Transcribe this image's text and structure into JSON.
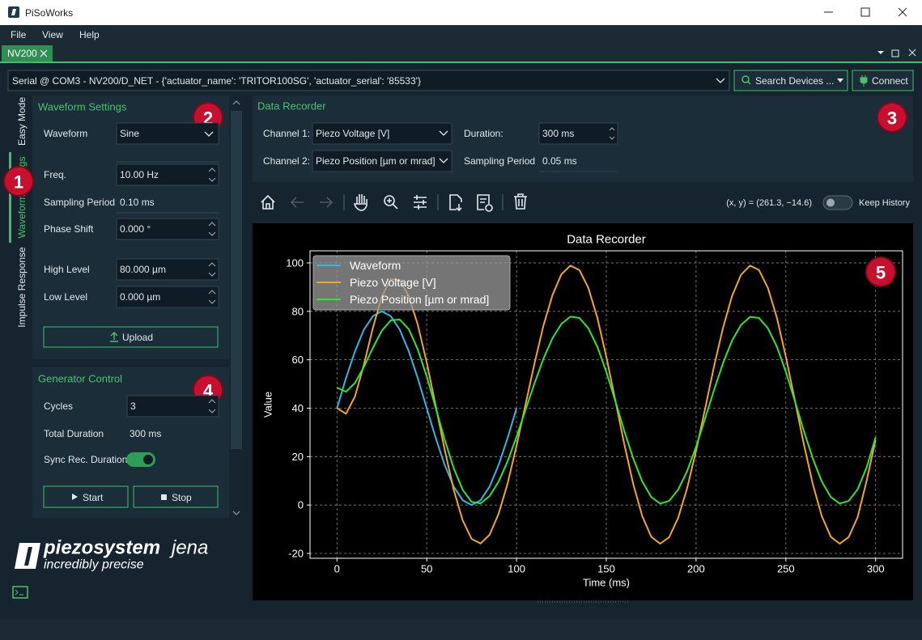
{
  "window": {
    "title": "PiSoWorks"
  },
  "menu": [
    "File",
    "View",
    "Help"
  ],
  "tab": "NV200",
  "device": {
    "selection": "Serial @ COM3 - NV200/D_NET - {'actuator_name': 'TRITOR100SG', 'actuator_serial': '85533'}",
    "search_button": "Search Devices ...",
    "connect_button": "Connect"
  },
  "side_tabs": [
    "Easy Mode",
    "Waveform Settings",
    "Impulse Response"
  ],
  "waveform_settings": {
    "title": "Waveform Settings",
    "fields": [
      {
        "label": "Waveform",
        "value": "Sine"
      },
      {
        "label": "Freq.",
        "value": "10.00 Hz"
      },
      {
        "label": "Sampling Period",
        "value": "0.10 ms"
      },
      {
        "label": "Phase Shift",
        "value": "0.000 °"
      },
      {
        "label": "High Level",
        "value": "80.000 µm"
      },
      {
        "label": "Low Level",
        "value": "0.000 µm"
      }
    ],
    "upload_button": "Upload"
  },
  "generator_control": {
    "title": "Generator Control",
    "fields": [
      {
        "label": "Cycles",
        "value": "3"
      },
      {
        "label": "Total Duration",
        "value": "300 ms"
      }
    ],
    "sync_label": "Sync Rec. Duration",
    "start_button": "Start",
    "stop_button": "Stop"
  },
  "logo": {
    "brand": "piezosystem",
    "brand_suffix": "jena",
    "tagline": "incredibly precise"
  },
  "data_recorder": {
    "title": "Data Recorder",
    "channel1_label": "Channel 1:",
    "channel1": "Piezo Voltage [V]",
    "channel2_label": "Channel 2:",
    "channel2": "Piezo Position [µm or mrad]",
    "duration_label": "Duration:",
    "duration": "300 ms",
    "sampling_label": "Sampling Period",
    "sampling": "0.05 ms"
  },
  "toolbar": {
    "coordinates": "(x, y) = (261.3, −14.6)",
    "keep_history": "Keep History"
  },
  "badges": [
    "1",
    "2",
    "3",
    "4",
    "5"
  ],
  "chart_data": {
    "type": "line",
    "title": "Data Recorder",
    "x_label": "Time (ms)",
    "y_label": "Value",
    "x": [
      0,
      5,
      10,
      15,
      20,
      25,
      30,
      35,
      40,
      45,
      50,
      55,
      60,
      65,
      70,
      75,
      80,
      85,
      90,
      95,
      100,
      105,
      110,
      115,
      120,
      125,
      130,
      135,
      140,
      145,
      150,
      155,
      160,
      165,
      170,
      175,
      180,
      185,
      190,
      195,
      200,
      205,
      210,
      215,
      220,
      225,
      230,
      235,
      240,
      245,
      250,
      255,
      260,
      265,
      270,
      275,
      280,
      285,
      290,
      295,
      300
    ],
    "series": [
      {
        "name": "Waveform",
        "color": "#2fb8e6",
        "values": [
          40,
          52.4,
          63.5,
          72.4,
          78.0,
          80,
          78.0,
          72.4,
          63.5,
          52.4,
          40,
          27.6,
          16.5,
          7.6,
          2.0,
          0,
          2.0,
          7.6,
          16.5,
          27.6,
          40,
          null,
          null,
          null,
          null,
          null,
          null,
          null,
          null,
          null,
          null,
          null,
          null,
          null,
          null,
          null,
          null,
          null,
          null,
          null,
          null,
          null,
          null,
          null,
          null,
          null,
          null,
          null,
          null,
          null,
          null,
          null,
          null,
          null,
          null,
          null,
          null,
          null,
          null,
          null,
          null
        ]
      },
      {
        "name": "Piezo Voltage [V]",
        "color": "#f5a623",
        "values": [
          40,
          37.7,
          44.8,
          57.9,
          73.1,
          86.2,
          93.3,
          92.9,
          86.3,
          74.5,
          58.8,
          40.9,
          22.7,
          6.3,
          -6.3,
          -14.0,
          -15.9,
          -12.3,
          -3.7,
          8.8,
          24.5,
          41.5,
          58.5,
          74.2,
          86.7,
          95.3,
          98.9,
          97.1,
          89.7,
          77.4,
          61.3,
          43.3,
          25.2,
          8.6,
          -4.6,
          -13.1,
          -16,
          -13.3,
          -5.4,
          6.9,
          22.4,
          39.7,
          57.3,
          73.2,
          86.3,
          95.1,
          98.9,
          97.1,
          89.7,
          77.4,
          61.3,
          43.3,
          25.2,
          8.6,
          -4.6,
          -13.1,
          -16,
          -13.2,
          -5.0,
          10,
          27
        ]
      },
      {
        "name": "Piezo Position [µm or mrad]",
        "color": "#2ee82e",
        "values": [
          48.5,
          46.8,
          50.4,
          57.0,
          64.9,
          72.0,
          76.3,
          76.6,
          72.6,
          64.3,
          53.1,
          40.1,
          26.9,
          15.2,
          6.3,
          1.3,
          0.7,
          3.7,
          9.6,
          18.0,
          28.2,
          39.3,
          50.3,
          60.5,
          68.9,
          74.8,
          77.8,
          77.3,
          73.0,
          65.4,
          55.0,
          43.0,
          30.6,
          19.2,
          9.7,
          3.3,
          0.6,
          1.7,
          6.3,
          14.0,
          24.1,
          35.7,
          47.5,
          58.6,
          67.9,
          74.4,
          77.7,
          77.3,
          73.0,
          65.4,
          55.0,
          43.0,
          30.6,
          19.2,
          9.7,
          3.3,
          0.6,
          1.7,
          6.5,
          15.5,
          28
        ]
      }
    ],
    "xlim": [
      -15,
      315
    ],
    "ylim": [
      -22,
      105
    ],
    "xticks": [
      0,
      50,
      100,
      150,
      200,
      250,
      300
    ],
    "yticks": [
      -20,
      0,
      20,
      40,
      60,
      80,
      100
    ],
    "grid": true,
    "legend": "upper-left"
  }
}
